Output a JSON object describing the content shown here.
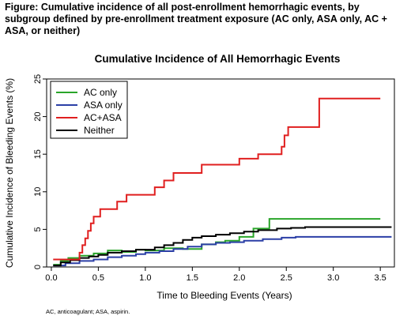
{
  "figure_caption": "Figure: Cumulative incidence of all post-enrollment hemorrhagic events, by subgroup defined by pre-enrollment treatment exposure (AC only, ASA only, AC + ASA, or neither)",
  "footnote": "AC, anticoagulant; ASA, aspirin.",
  "chart_data": {
    "type": "line",
    "step": true,
    "title": "Cumulative Incidence of All Hemorrhagic Events",
    "xlabel": "Time to Bleeding Events (Years)",
    "ylabel": "Cumulative Incidence of Bleeding Events (%)",
    "xlim": [
      -0.05,
      3.65
    ],
    "ylim": [
      0,
      25
    ],
    "xticks": [
      0.0,
      0.5,
      1.0,
      1.5,
      2.0,
      2.5,
      3.0,
      3.5
    ],
    "xtick_labels": [
      "0.0",
      "0.5",
      "1.0",
      "1.5",
      "2.0",
      "2.5",
      "3.0",
      "3.5"
    ],
    "yticks": [
      0,
      5,
      10,
      15,
      20,
      25
    ],
    "ytick_labels": [
      "0",
      "5",
      "10",
      "15",
      "20",
      "25"
    ],
    "grid": false,
    "legend": "top-left",
    "series": [
      {
        "name": "AC only",
        "color": "#2aa52a",
        "x": [
          0.02,
          0.1,
          0.18,
          0.3,
          0.45,
          0.6,
          0.75,
          0.9,
          1.0,
          1.2,
          1.4,
          1.6,
          1.75,
          1.85,
          2.0,
          2.15,
          2.32,
          3.5
        ],
        "y": [
          0.3,
          0.8,
          1.2,
          1.5,
          1.8,
          2.2,
          2.0,
          2.3,
          2.2,
          2.5,
          2.4,
          3.0,
          3.3,
          3.5,
          4.0,
          5.1,
          6.4,
          6.4
        ]
      },
      {
        "name": "ASA only",
        "color": "#2b3fa6",
        "x": [
          0.02,
          0.15,
          0.3,
          0.45,
          0.6,
          0.75,
          0.9,
          1.0,
          1.15,
          1.3,
          1.45,
          1.6,
          1.75,
          1.9,
          2.05,
          2.25,
          2.45,
          2.6,
          3.62
        ],
        "y": [
          0.2,
          0.5,
          0.8,
          1.0,
          1.3,
          1.5,
          1.7,
          1.9,
          2.1,
          2.4,
          2.7,
          3.0,
          3.2,
          3.3,
          3.5,
          3.7,
          3.9,
          4.0,
          4.0
        ]
      },
      {
        "name": "AC+ASA",
        "color": "#e01f1f",
        "x": [
          0.02,
          0.3,
          0.33,
          0.36,
          0.39,
          0.42,
          0.45,
          0.48,
          0.52,
          0.55,
          0.7,
          0.8,
          1.0,
          1.1,
          1.2,
          1.3,
          1.4,
          1.6,
          1.85,
          2.0,
          2.2,
          2.45,
          2.48,
          2.52,
          2.85,
          3.5
        ],
        "y": [
          1.0,
          1.9,
          2.9,
          3.8,
          4.8,
          5.8,
          6.7,
          6.7,
          7.7,
          7.7,
          8.7,
          9.6,
          9.6,
          10.6,
          11.5,
          12.5,
          12.5,
          13.6,
          13.6,
          14.4,
          15.0,
          16.0,
          17.5,
          18.6,
          22.4,
          22.4
        ]
      },
      {
        "name": "Neither",
        "color": "#000000",
        "x": [
          0.02,
          0.1,
          0.2,
          0.3,
          0.4,
          0.5,
          0.6,
          0.75,
          0.9,
          1.1,
          1.2,
          1.3,
          1.4,
          1.5,
          1.6,
          1.75,
          1.9,
          2.05,
          2.2,
          2.4,
          2.55,
          2.7,
          3.62
        ],
        "y": [
          0.2,
          0.6,
          0.9,
          1.2,
          1.4,
          1.6,
          1.9,
          2.1,
          2.3,
          2.6,
          2.9,
          3.2,
          3.6,
          3.9,
          4.1,
          4.3,
          4.5,
          4.7,
          4.9,
          5.1,
          5.2,
          5.3,
          5.3
        ]
      }
    ]
  }
}
